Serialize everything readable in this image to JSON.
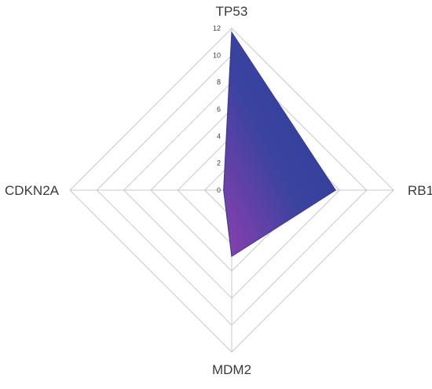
{
  "chart_data": {
    "type": "radar",
    "axes": [
      "TP53",
      "RB1",
      "MDM2",
      "CDKN2A"
    ],
    "series": [
      {
        "values": [
          11.7,
          7.7,
          4.9,
          0.6
        ]
      }
    ],
    "ticks": [
      "0",
      "2",
      "4",
      "6",
      "8",
      "10",
      "12"
    ],
    "rmax": 12,
    "grid": true,
    "colors": {
      "fill_start": "#8e3fae",
      "fill_end": "#2d3d99",
      "stroke": "#3a3d96"
    }
  }
}
